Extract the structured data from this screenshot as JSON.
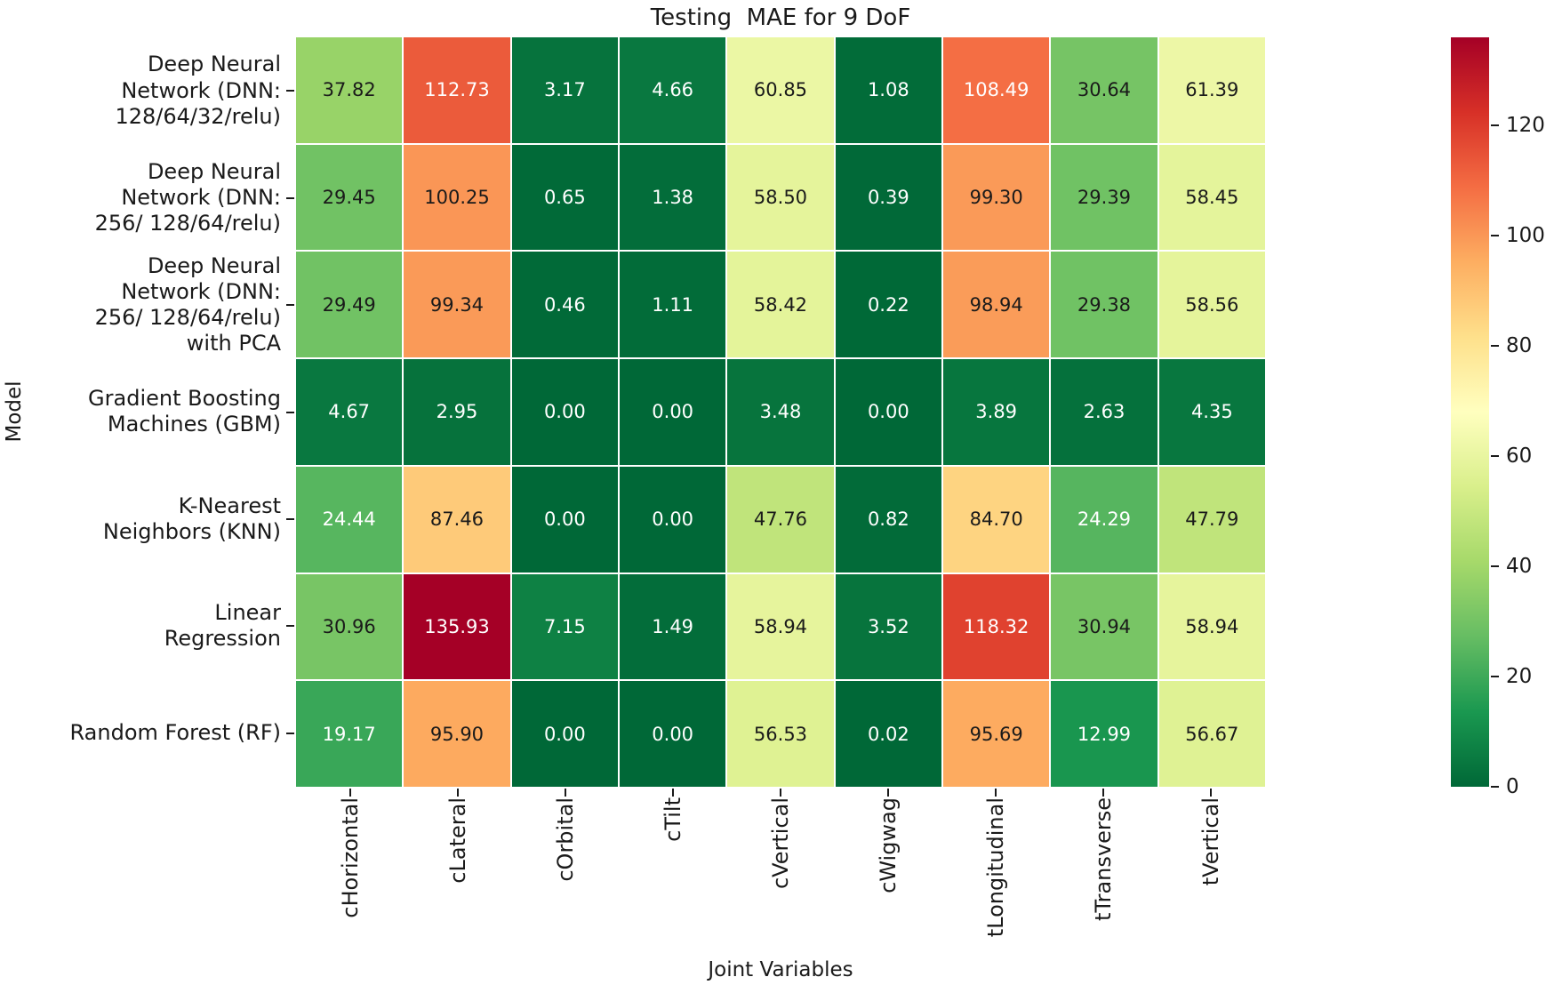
{
  "chart_data": {
    "type": "heatmap",
    "title": "Testing  MAE for 9 DoF",
    "xlabel": "Joint Variables",
    "ylabel": "Model",
    "colormap": "RdYlGn_r",
    "vmin": 0,
    "vmax": 135.93,
    "grid_lines": "white 2px between cells",
    "legend_position": "colorbar right",
    "colorbar_ticks": [
      0,
      20,
      40,
      60,
      80,
      100,
      120
    ],
    "colormap_stops": [
      "#006837",
      "#1a9850",
      "#66bd63",
      "#a6d96a",
      "#d9ef8b",
      "#ffffbf",
      "#fee08b",
      "#fdae61",
      "#f46d43",
      "#d73027",
      "#a50026"
    ],
    "categories": [
      "cHorizontal",
      "cLateral",
      "cOrbital",
      "cTilt",
      "cVertical",
      "cWigwag",
      "tLongitudinal",
      "tTransverse",
      "tVertical"
    ],
    "rows": [
      {
        "label": "Deep Neural\nNetwork (DNN:\n128/64/32/relu)",
        "values": [
          37.82,
          112.73,
          3.17,
          4.66,
          60.85,
          1.08,
          108.49,
          30.64,
          61.39
        ]
      },
      {
        "label": "Deep Neural\nNetwork (DNN:\n256/ 128/64/relu)",
        "values": [
          29.45,
          100.25,
          0.65,
          1.38,
          58.5,
          0.39,
          99.3,
          29.39,
          58.45
        ]
      },
      {
        "label": "Deep Neural\nNetwork (DNN:\n256/ 128/64/relu)\nwith PCA",
        "values": [
          29.49,
          99.34,
          0.46,
          1.11,
          58.42,
          0.22,
          98.94,
          29.38,
          58.56
        ]
      },
      {
        "label": "Gradient Boosting\nMachines (GBM)",
        "values": [
          4.67,
          2.95,
          0.0,
          0.0,
          3.48,
          0.0,
          3.89,
          2.63,
          4.35
        ]
      },
      {
        "label": "K-Nearest\nNeighbors (KNN)",
        "values": [
          24.44,
          87.46,
          0.0,
          0.0,
          47.76,
          0.82,
          84.7,
          24.29,
          47.79
        ]
      },
      {
        "label": "Linear\nRegression",
        "values": [
          30.96,
          135.93,
          7.15,
          1.49,
          58.94,
          3.52,
          118.32,
          30.94,
          58.94
        ]
      },
      {
        "label": "Random Forest (RF)",
        "values": [
          19.17,
          95.9,
          0.0,
          0.0,
          56.53,
          0.02,
          95.69,
          12.99,
          56.67
        ]
      }
    ],
    "value_format": "2 decimal places",
    "annotation_text_colors": {
      "dark_cells": "#ffffff",
      "light_cells": "#1a1a1a"
    }
  }
}
